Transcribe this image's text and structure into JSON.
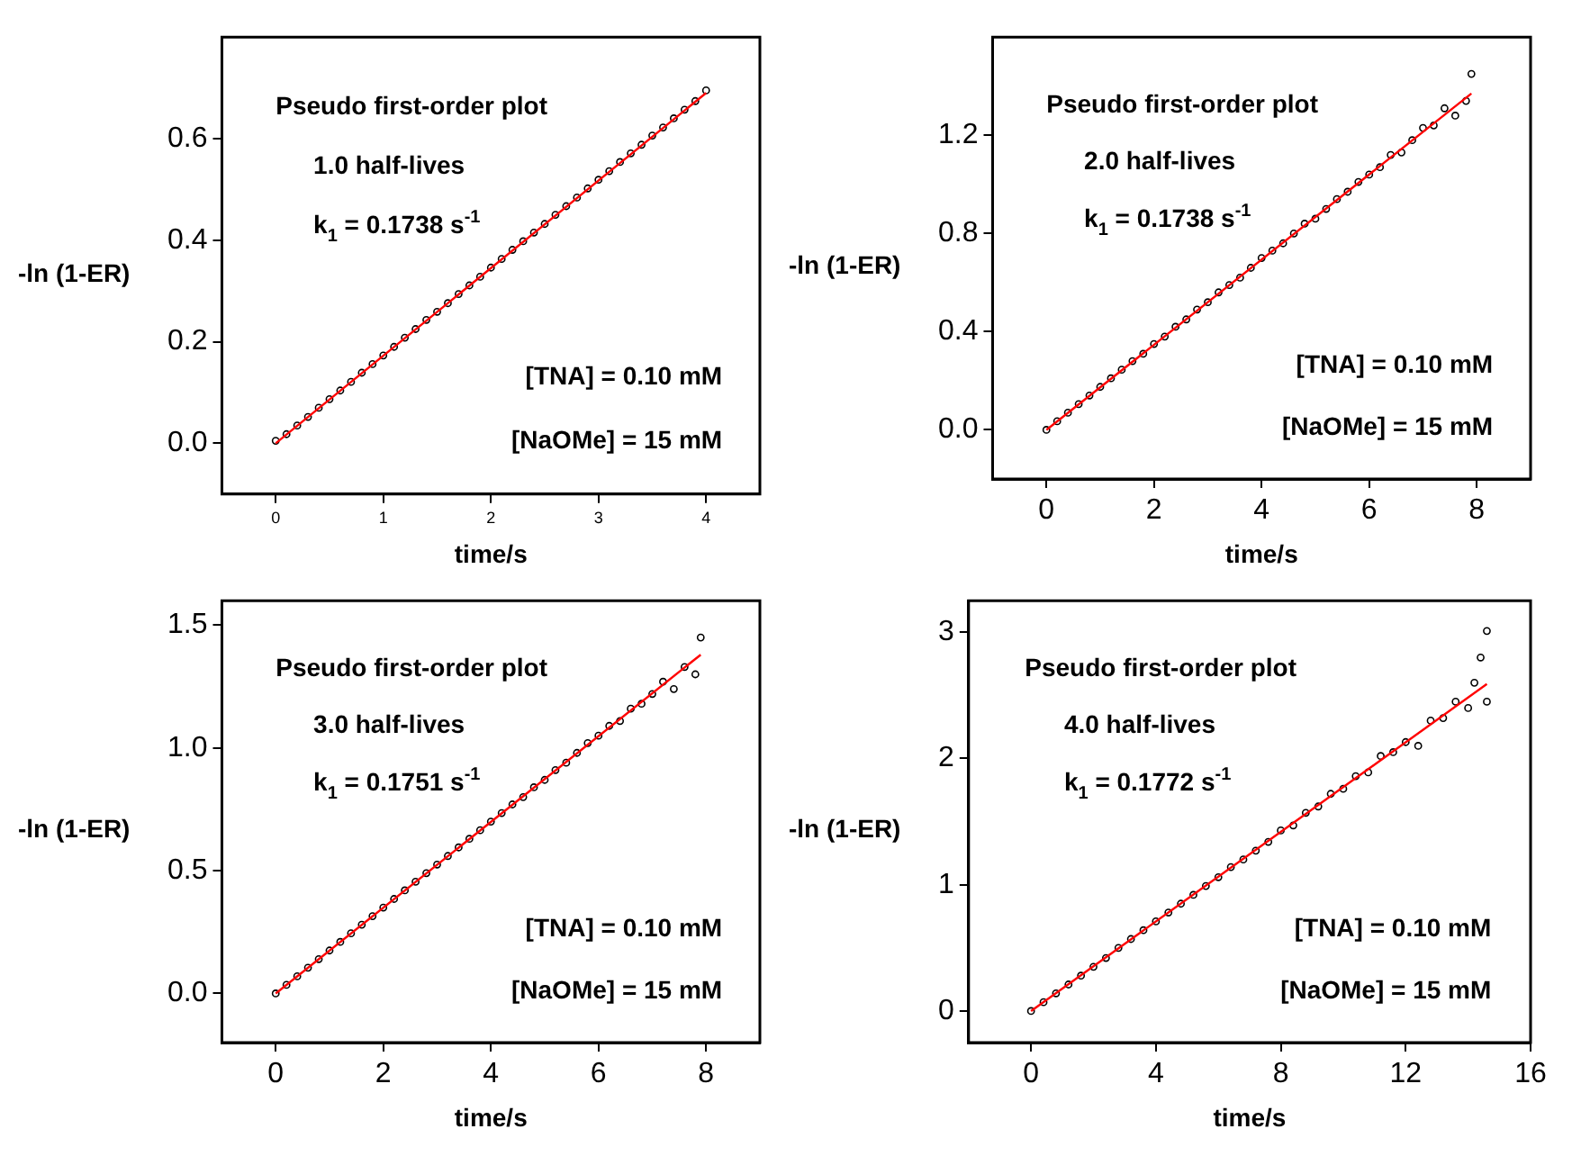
{
  "chart_data": [
    {
      "type": "scatter",
      "xlabel": "time/s",
      "ylabel": "-ln (1-ER)",
      "marker": "circle",
      "grid": false,
      "annotations": [
        "Pseudo first-order plot",
        "1.0 half-lives",
        "k$_{1}$ = 0.1738 s$^{-1}$",
        "[TNA] = 0.10 mM",
        "[NaOMe] = 15 mM"
      ],
      "xlim": [
        -0.5,
        4.5
      ],
      "xticks": [
        0,
        1,
        2,
        3,
        4
      ],
      "ylim": [
        -0.1,
        0.8
      ],
      "yticks": [
        {
          "value": 0,
          "label": "0.0"
        },
        {
          "value": 0.2,
          "label": "0.2"
        },
        {
          "value": 0.4,
          "label": "0.4"
        },
        {
          "value": 0.6,
          "label": "0.6"
        }
      ],
      "series": [
        {
          "type": "scatter",
          "color": "#000000",
          "x": [
            0,
            0.1,
            0.2,
            0.3,
            0.4,
            0.5,
            0.6,
            0.7,
            0.8,
            0.9,
            1.0,
            1.1,
            1.2,
            1.3,
            1.4,
            1.5,
            1.6,
            1.7,
            1.8,
            1.9,
            2.0,
            2.1,
            2.2,
            2.3,
            2.4,
            2.5,
            2.6,
            2.7,
            2.8,
            2.9,
            3.0,
            3.1,
            3.2,
            3.3,
            3.4,
            3.5,
            3.6,
            3.7,
            3.8,
            3.9,
            4.0
          ],
          "values": [
            0.005,
            0.018,
            0.035,
            0.052,
            0.07,
            0.087,
            0.104,
            0.121,
            0.139,
            0.156,
            0.173,
            0.19,
            0.208,
            0.225,
            0.243,
            0.259,
            0.276,
            0.294,
            0.311,
            0.328,
            0.346,
            0.363,
            0.381,
            0.398,
            0.415,
            0.432,
            0.45,
            0.467,
            0.484,
            0.502,
            0.519,
            0.536,
            0.554,
            0.571,
            0.588,
            0.606,
            0.622,
            0.64,
            0.657,
            0.674,
            0.695
          ]
        },
        {
          "type": "line",
          "color": "#ff0000",
          "marker": "none",
          "x": [
            0,
            4
          ],
          "values": [
            0,
            0.69
          ]
        }
      ]
    },
    {
      "type": "scatter",
      "xlabel": "time/s",
      "ylabel": "-ln (1-ER)",
      "marker": "circle",
      "grid": false,
      "annotations": [
        "Pseudo first-order plot",
        "2.0 half-lives",
        "k$_{1}$ = 0.1738 s$^{-1}$",
        "[TNA] = 0.10 mM",
        "[NaOMe] = 15 mM"
      ],
      "xlim": [
        -1,
        9
      ],
      "xticks": [
        0,
        2,
        4,
        6,
        8
      ],
      "ylim": [
        -0.2,
        1.6
      ],
      "yticks": [
        {
          "value": 0,
          "label": "0.0"
        },
        {
          "value": 0.4,
          "label": "0.4"
        },
        {
          "value": 0.8,
          "label": "0.8"
        },
        {
          "value": 1.2,
          "label": "1.2"
        }
      ],
      "series": [
        {
          "type": "scatter",
          "color": "#000000",
          "x": [
            0,
            0.2,
            0.4,
            0.6,
            0.8,
            1.0,
            1.2,
            1.4,
            1.6,
            1.8,
            2.0,
            2.2,
            2.4,
            2.6,
            2.8,
            3.0,
            3.2,
            3.4,
            3.6,
            3.8,
            4.0,
            4.2,
            4.4,
            4.6,
            4.8,
            5.0,
            5.2,
            5.4,
            5.6,
            5.8,
            6.0,
            6.2,
            6.4,
            6.6,
            6.8,
            7.0,
            7.2,
            7.4,
            7.6,
            7.8,
            7.9
          ],
          "values": [
            0,
            0.035,
            0.07,
            0.105,
            0.14,
            0.175,
            0.21,
            0.245,
            0.28,
            0.31,
            0.35,
            0.38,
            0.42,
            0.45,
            0.49,
            0.52,
            0.56,
            0.59,
            0.62,
            0.66,
            0.7,
            0.73,
            0.76,
            0.8,
            0.84,
            0.86,
            0.9,
            0.94,
            0.97,
            1.01,
            1.04,
            1.07,
            1.12,
            1.13,
            1.18,
            1.23,
            1.24,
            1.31,
            1.28,
            1.34,
            1.45
          ]
        },
        {
          "type": "line",
          "color": "#ff0000",
          "marker": "none",
          "x": [
            0,
            7.9
          ],
          "values": [
            0,
            1.37
          ]
        }
      ]
    },
    {
      "type": "scatter",
      "xlabel": "time/s",
      "ylabel": "-ln (1-ER)",
      "marker": "circle",
      "grid": false,
      "annotations": [
        "Pseudo first-order plot",
        "3.0 half-lives",
        "k$_{1}$ = 0.1751 s$^{-1}$",
        "[TNA] = 0.10 mM",
        "[NaOMe] = 15 mM"
      ],
      "xlim": [
        -1,
        9
      ],
      "xticks": [
        0,
        2,
        4,
        6,
        8
      ],
      "ylim": [
        -0.2,
        1.6
      ],
      "yticks": [
        {
          "value": 0,
          "label": "0.0"
        },
        {
          "value": 0.5,
          "label": "0.5"
        },
        {
          "value": 1,
          "label": "1.0"
        },
        {
          "value": 1.5,
          "label": "1.5"
        }
      ],
      "series": [
        {
          "type": "scatter",
          "color": "#000000",
          "x": [
            0,
            0.2,
            0.4,
            0.6,
            0.8,
            1.0,
            1.2,
            1.4,
            1.6,
            1.8,
            2.0,
            2.2,
            2.4,
            2.6,
            2.8,
            3.0,
            3.2,
            3.4,
            3.6,
            3.8,
            4.0,
            4.2,
            4.4,
            4.6,
            4.8,
            5.0,
            5.2,
            5.4,
            5.6,
            5.8,
            6.0,
            6.2,
            6.4,
            6.6,
            6.8,
            7.0,
            7.2,
            7.4,
            7.6,
            7.8,
            7.9
          ],
          "values": [
            0,
            0.035,
            0.07,
            0.105,
            0.14,
            0.175,
            0.21,
            0.245,
            0.28,
            0.315,
            0.35,
            0.385,
            0.42,
            0.455,
            0.49,
            0.525,
            0.56,
            0.595,
            0.63,
            0.665,
            0.7,
            0.735,
            0.77,
            0.8,
            0.84,
            0.87,
            0.91,
            0.94,
            0.98,
            1.02,
            1.05,
            1.09,
            1.11,
            1.16,
            1.18,
            1.22,
            1.27,
            1.24,
            1.33,
            1.3,
            1.45
          ]
        },
        {
          "type": "line",
          "color": "#ff0000",
          "marker": "none",
          "x": [
            0,
            7.9
          ],
          "values": [
            0,
            1.38
          ]
        }
      ]
    },
    {
      "type": "scatter",
      "xlabel": "time/s",
      "ylabel": "-ln (1-ER)",
      "marker": "circle",
      "grid": false,
      "annotations": [
        "Pseudo first-order plot",
        "4.0 half-lives",
        "k$_{1}$ = 0.1772 s$^{-1}$",
        "[TNA] = 0.10 mM",
        "[NaOMe] = 15 mM"
      ],
      "xlim": [
        -2,
        16
      ],
      "xticks": [
        0,
        4,
        8,
        12,
        16
      ],
      "ylim": [
        -0.25,
        3.25
      ],
      "yticks": [
        0,
        1,
        2,
        3
      ],
      "series": [
        {
          "type": "scatter",
          "color": "#000000",
          "x": [
            0,
            0.4,
            0.8,
            1.2,
            1.6,
            2.0,
            2.4,
            2.8,
            3.2,
            3.6,
            4.0,
            4.4,
            4.8,
            5.2,
            5.6,
            6.0,
            6.4,
            6.8,
            7.2,
            7.6,
            8.0,
            8.4,
            8.8,
            9.2,
            9.6,
            10.0,
            10.4,
            10.8,
            11.2,
            11.6,
            12.0,
            12.4,
            12.8,
            13.2,
            13.6,
            14.0,
            14.2,
            14.4,
            14.6,
            14.6
          ],
          "values": [
            0,
            0.07,
            0.14,
            0.21,
            0.28,
            0.35,
            0.42,
            0.5,
            0.57,
            0.64,
            0.71,
            0.78,
            0.85,
            0.92,
            0.99,
            1.06,
            1.14,
            1.2,
            1.27,
            1.34,
            1.43,
            1.47,
            1.57,
            1.62,
            1.72,
            1.76,
            1.86,
            1.89,
            2.02,
            2.05,
            2.13,
            2.1,
            2.3,
            2.32,
            2.45,
            2.4,
            2.6,
            2.8,
            3.01,
            2.45
          ]
        },
        {
          "type": "line",
          "color": "#ff0000",
          "marker": "none",
          "x": [
            0,
            14.6
          ],
          "values": [
            0,
            2.59
          ]
        }
      ]
    }
  ]
}
